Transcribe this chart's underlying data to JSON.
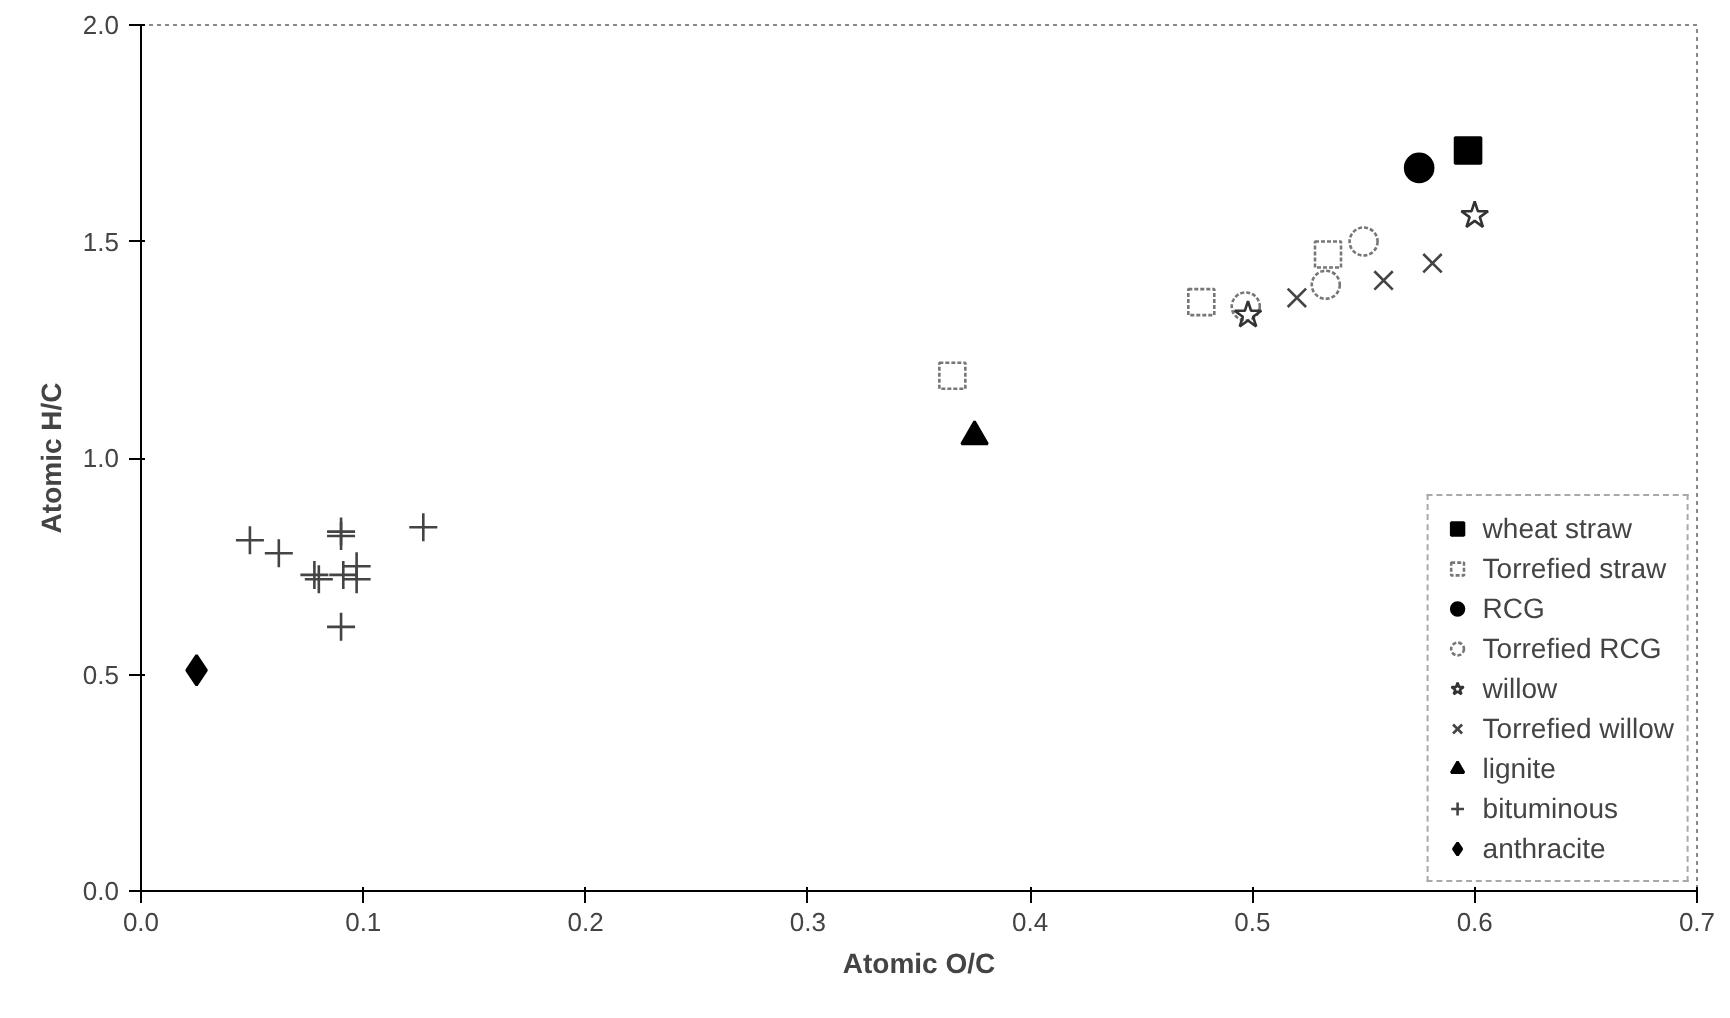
{
  "chart_data": {
    "type": "scatter",
    "xlabel": "Atomic O/C",
    "ylabel": "Atomic H/C",
    "xlim": [
      0,
      0.7
    ],
    "ylim": [
      0,
      2.0
    ],
    "xticks": [
      {
        "value": 0,
        "label": "0.0"
      },
      0.1,
      0.2,
      0.3,
      0.4,
      0.5,
      0.6,
      0.7
    ],
    "yticks": [
      {
        "value": 0,
        "label": "0.0"
      },
      0.5,
      {
        "value": 1,
        "label": "1.0"
      },
      1.5,
      {
        "value": 2,
        "label": "2.0"
      }
    ],
    "grid": false,
    "legend": "right",
    "series": [
      {
        "name": "wheat straw",
        "color": "#000000",
        "marker": "square",
        "x": [
          0.597
        ],
        "values": [
          1.71
        ]
      },
      {
        "name": "Torrefied straw",
        "color": "#777777",
        "marker": "square",
        "x": [
          0.365,
          0.477,
          0.534
        ],
        "values": [
          1.19,
          1.36,
          1.47
        ]
      },
      {
        "name": "RCG",
        "color": "#000000",
        "marker": "circle",
        "x": [
          0.575
        ],
        "values": [
          1.67
        ]
      },
      {
        "name": "Torrefied RCG",
        "color": "#777777",
        "marker": "circle",
        "x": [
          0.497,
          0.533,
          0.55
        ],
        "values": [
          1.35,
          1.4,
          1.5
        ]
      },
      {
        "name": "willow",
        "color": "#333333",
        "marker": "star",
        "x": [
          0.498,
          0.6
        ],
        "values": [
          1.33,
          1.56
        ]
      },
      {
        "name": "Torrefied willow",
        "color": "#444444",
        "marker": "x",
        "x": [
          0.52,
          0.559,
          0.581
        ],
        "values": [
          1.37,
          1.41,
          1.45
        ]
      },
      {
        "name": "lignite",
        "color": "#000000",
        "marker": "triangle",
        "x": [
          0.375
        ],
        "values": [
          1.05
        ]
      },
      {
        "name": "bituminous",
        "color": "#444444",
        "marker": "cross",
        "x": [
          0.049,
          0.062,
          0.078,
          0.08,
          0.09,
          0.09,
          0.097,
          0.097,
          0.091,
          0.09,
          0.127
        ],
        "values": [
          0.81,
          0.78,
          0.73,
          0.72,
          0.83,
          0.82,
          0.75,
          0.72,
          0.73,
          0.61,
          0.84
        ]
      },
      {
        "name": "anthracite",
        "color": "#000000",
        "marker": "diamond",
        "x": [
          0.025
        ],
        "values": [
          0.51
        ]
      }
    ]
  }
}
